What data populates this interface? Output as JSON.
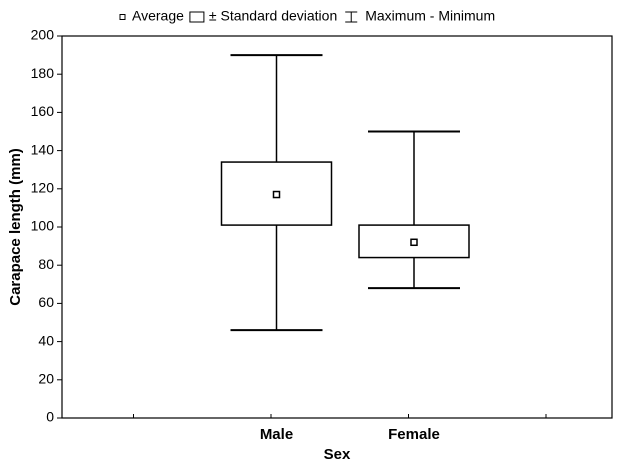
{
  "chart_data": {
    "type": "box",
    "x_label": "Sex",
    "y_label": "Carapace length (mm)",
    "categories": [
      "Male",
      "Female"
    ],
    "series": [
      {
        "name": "Average",
        "values": [
          117,
          92
        ]
      },
      {
        "name": "± Standard deviation",
        "low": [
          101,
          84
        ],
        "high": [
          134,
          101
        ]
      },
      {
        "name": "Maximum - Minimum",
        "low": [
          46,
          68
        ],
        "high": [
          190,
          150
        ]
      }
    ],
    "ylim": [
      0,
      200
    ],
    "yticks": [
      0,
      20,
      40,
      60,
      80,
      100,
      120,
      140,
      160,
      180,
      200
    ],
    "grid": false,
    "legend": "top"
  }
}
